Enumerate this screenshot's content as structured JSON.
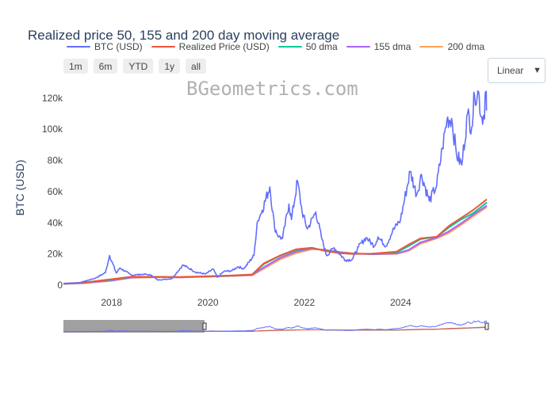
{
  "toolbar": {
    "range_buttons": [
      "1m",
      "6m",
      "YTD",
      "1y",
      "all"
    ],
    "scale_selected": "Linear"
  },
  "watermark": "BGeometrics.com",
  "chart_data": {
    "type": "line",
    "title": "Realized price 50, 155 and 200 day moving average",
    "ylabel": "BTC (USD)",
    "xlabel": "",
    "xlim": [
      "2017-01-01",
      "2025-10-15"
    ],
    "ylim": [
      0,
      127000
    ],
    "x_ticks": [
      "2018",
      "2020",
      "2022",
      "2024"
    ],
    "y_ticks": [
      0,
      20000,
      40000,
      60000,
      80000,
      100000,
      120000
    ],
    "y_tick_labels": [
      "0",
      "20k",
      "40k",
      "60k",
      "80k",
      "100k",
      "120k"
    ],
    "legend": "top-horizontal",
    "grid": false,
    "rangeslider": true,
    "colors": {
      "btc": "#636efa",
      "realized": "#ef553b",
      "dma50": "#00cc96",
      "dma155": "#ab63fa",
      "dma200": "#ffa15a"
    },
    "series": [
      {
        "name": "BTC (USD)",
        "key": "btc",
        "x": [
          "2017-01-01",
          "2017-05-01",
          "2017-09-01",
          "2017-11-15",
          "2017-12-17",
          "2018-02-06",
          "2018-03-05",
          "2018-06-01",
          "2018-09-01",
          "2018-11-01",
          "2018-12-15",
          "2019-04-01",
          "2019-06-26",
          "2019-09-01",
          "2019-10-01",
          "2019-12-15",
          "2020-02-10",
          "2020-03-13",
          "2020-05-01",
          "2020-07-01",
          "2020-08-15",
          "2020-10-01",
          "2020-12-15",
          "2021-01-08",
          "2021-02-15",
          "2021-04-14",
          "2021-05-20",
          "2021-06-22",
          "2021-07-20",
          "2021-09-06",
          "2021-09-25",
          "2021-11-10",
          "2021-12-15",
          "2022-01-24",
          "2022-03-29",
          "2022-05-10",
          "2022-06-18",
          "2022-08-15",
          "2022-09-30",
          "2022-11-09",
          "2022-12-30",
          "2023-02-15",
          "2023-04-14",
          "2023-06-15",
          "2023-07-13",
          "2023-09-11",
          "2023-10-31",
          "2023-12-31",
          "2024-03-13",
          "2024-05-01",
          "2024-06-07",
          "2024-08-05",
          "2024-09-30",
          "2024-11-12",
          "2024-12-17",
          "2025-01-21",
          "2025-02-27",
          "2025-04-08",
          "2025-05-22",
          "2025-06-22",
          "2025-07-14",
          "2025-08-14",
          "2025-09-01",
          "2025-09-25",
          "2025-10-06",
          "2025-10-15"
        ],
        "values": [
          1000,
          1500,
          4500,
          8000,
          19000,
          7700,
          11000,
          6400,
          7000,
          6300,
          3300,
          4100,
          12900,
          9800,
          8300,
          7100,
          10300,
          5000,
          8800,
          9200,
          11800,
          10600,
          19000,
          40000,
          48000,
          63000,
          37000,
          31000,
          30000,
          52000,
          42000,
          67000,
          47000,
          36000,
          47000,
          31000,
          19000,
          24000,
          19500,
          16000,
          16500,
          24500,
          30500,
          25000,
          31000,
          25000,
          34500,
          42000,
          73000,
          58000,
          71000,
          54000,
          64000,
          88000,
          106000,
          107000,
          84000,
          77000,
          110000,
          101000,
          122000,
          124000,
          108000,
          109000,
          124000,
          112000
        ]
      },
      {
        "name": "Realized Price (USD)",
        "key": "realized",
        "x": [
          "2017-01-01",
          "2017-06-01",
          "2018-01-01",
          "2018-06-01",
          "2019-01-01",
          "2019-06-01",
          "2020-01-01",
          "2020-06-01",
          "2020-12-01",
          "2021-03-01",
          "2021-07-01",
          "2021-11-01",
          "2022-03-01",
          "2022-06-01",
          "2022-10-01",
          "2023-01-01",
          "2023-06-01",
          "2023-12-01",
          "2024-03-01",
          "2024-06-01",
          "2024-10-01",
          "2025-01-01",
          "2025-04-01",
          "2025-07-01",
          "2025-10-15"
        ],
        "values": [
          1000,
          1600,
          3800,
          5400,
          5300,
          5200,
          5700,
          6100,
          6800,
          14000,
          19000,
          23000,
          24000,
          22000,
          20500,
          20000,
          20200,
          21500,
          26000,
          30000,
          31000,
          38000,
          43000,
          48000,
          55000
        ]
      },
      {
        "name": "50 dma",
        "key": "dma50",
        "x": [
          "2017-01-01",
          "2017-06-01",
          "2018-01-01",
          "2018-06-01",
          "2019-01-01",
          "2019-06-01",
          "2020-01-01",
          "2020-06-01",
          "2020-12-01",
          "2021-03-01",
          "2021-07-01",
          "2021-11-01",
          "2022-03-01",
          "2022-06-01",
          "2022-10-01",
          "2023-01-01",
          "2023-06-01",
          "2023-12-01",
          "2024-03-01",
          "2024-06-01",
          "2024-10-01",
          "2025-01-01",
          "2025-04-01",
          "2025-07-01",
          "2025-10-15"
        ],
        "values": [
          900,
          1500,
          3500,
          5200,
          5300,
          5100,
          5600,
          6000,
          6700,
          13500,
          18800,
          22500,
          23800,
          22200,
          20500,
          20000,
          20100,
          21000,
          25000,
          29500,
          31000,
          37000,
          42000,
          46000,
          53000
        ]
      },
      {
        "name": "155 dma",
        "key": "dma155",
        "x": [
          "2017-01-01",
          "2017-06-01",
          "2018-01-01",
          "2018-06-01",
          "2019-01-01",
          "2019-06-01",
          "2020-01-01",
          "2020-06-01",
          "2020-12-01",
          "2021-03-01",
          "2021-07-01",
          "2021-11-01",
          "2022-03-01",
          "2022-06-01",
          "2022-10-01",
          "2023-01-01",
          "2023-06-01",
          "2023-12-01",
          "2024-03-01",
          "2024-06-01",
          "2024-10-01",
          "2025-01-01",
          "2025-04-01",
          "2025-07-01",
          "2025-10-15"
        ],
        "values": [
          800,
          1300,
          3000,
          4900,
          5200,
          5000,
          5500,
          5900,
          6500,
          11500,
          17500,
          21500,
          23500,
          22500,
          21000,
          20200,
          19800,
          20300,
          22500,
          27500,
          30500,
          34500,
          39500,
          45000,
          51000
        ]
      },
      {
        "name": "200 dma",
        "key": "dma200",
        "x": [
          "2017-01-01",
          "2017-06-01",
          "2018-01-01",
          "2018-06-01",
          "2019-01-01",
          "2019-06-01",
          "2020-01-01",
          "2020-06-01",
          "2020-12-01",
          "2021-03-01",
          "2021-07-01",
          "2021-11-01",
          "2022-03-01",
          "2022-06-01",
          "2022-10-01",
          "2023-01-01",
          "2023-06-01",
          "2023-12-01",
          "2024-03-01",
          "2024-06-01",
          "2024-10-01",
          "2025-01-01",
          "2025-04-01",
          "2025-07-01",
          "2025-10-15"
        ],
        "values": [
          700,
          1200,
          2800,
          4700,
          5100,
          5000,
          5400,
          5800,
          6300,
          10500,
          16500,
          20500,
          23000,
          22800,
          21300,
          20500,
          19800,
          20000,
          22000,
          26500,
          30000,
          33500,
          38500,
          44000,
          50000
        ]
      }
    ]
  }
}
